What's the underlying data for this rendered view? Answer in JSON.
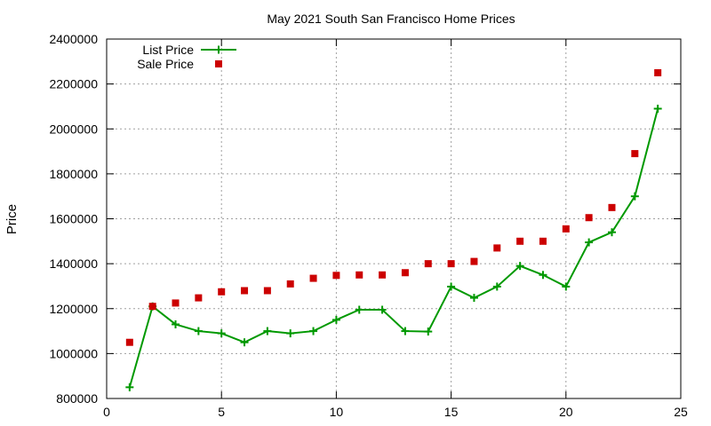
{
  "chart_data": {
    "type": "line",
    "title": "May 2021 South San Francisco Home Prices",
    "xlabel": "",
    "ylabel": "Price",
    "xlim": [
      0,
      25
    ],
    "ylim": [
      800000,
      2400000
    ],
    "x_ticks": [
      0,
      5,
      10,
      15,
      20,
      25
    ],
    "y_ticks": [
      800000,
      1000000,
      1200000,
      1400000,
      1600000,
      1800000,
      2000000,
      2200000,
      2400000
    ],
    "grid": true,
    "legend_position": "top-left",
    "x": [
      1,
      2,
      3,
      4,
      5,
      6,
      7,
      8,
      9,
      10,
      11,
      12,
      13,
      14,
      15,
      16,
      17,
      18,
      19,
      20,
      21,
      22,
      23,
      24
    ],
    "series": [
      {
        "name": "List Price",
        "style": "line-with-plus-markers",
        "color": "#009900",
        "values": [
          850000,
          1210000,
          1130000,
          1100000,
          1090000,
          1050000,
          1100000,
          1090000,
          1100000,
          1150000,
          1195000,
          1195000,
          1100000,
          1098000,
          1298000,
          1248000,
          1298000,
          1390000,
          1350000,
          1298000,
          1495000,
          1540000,
          1700000,
          2090000
        ]
      },
      {
        "name": "Sale Price",
        "style": "square-markers",
        "color": "#cc0000",
        "values": [
          1050000,
          1210000,
          1225000,
          1248000,
          1275000,
          1280000,
          1280000,
          1310000,
          1335000,
          1348000,
          1350000,
          1350000,
          1360000,
          1400000,
          1400000,
          1410000,
          1470000,
          1500000,
          1500000,
          1555000,
          1605000,
          1650000,
          1890000,
          2250000
        ]
      }
    ]
  }
}
